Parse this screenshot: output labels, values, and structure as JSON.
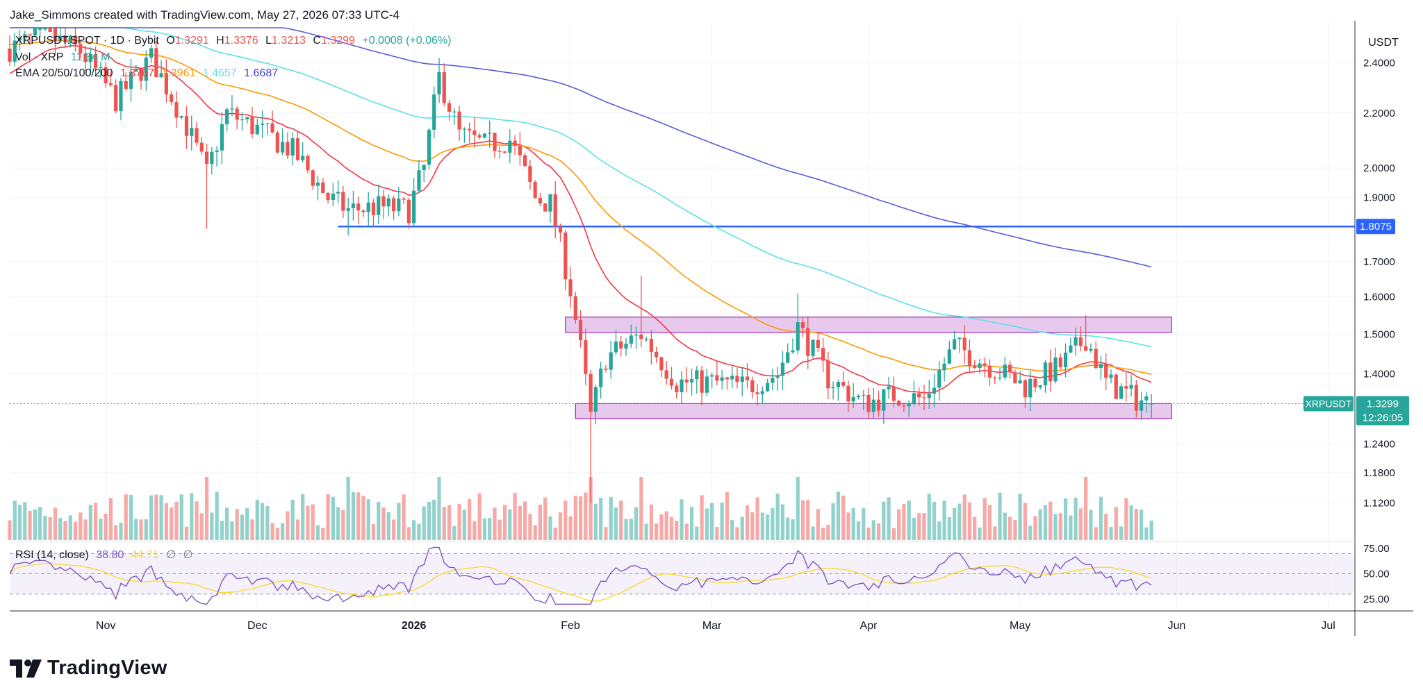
{
  "header": {
    "text": "Jake_Simmons created with TradingView.com, May 27, 2026 07:33 UTC-4"
  },
  "legend": {
    "symbol": "XRPUSDT.SPOT · 1D · Bybit",
    "o_label": "O",
    "o": "1.3291",
    "h_label": "H",
    "h": "1.3376",
    "l_label": "L",
    "l": "1.3213",
    "c_label": "C",
    "c": "1.3299",
    "change": "+0.0008 (+0.06%)",
    "vol_label": "Vol · XRP",
    "vol_value": "11.34 M",
    "ema_label": "EMA 20/50/100/200",
    "ema_values": [
      "1.3767",
      "1.3961",
      "1.4657",
      "1.6687"
    ],
    "rsi_label": "RSI (14, close)",
    "rsi_value": "38.80",
    "rsi_ma_value": "44.71",
    "rsi_extra": [
      "∅",
      "∅"
    ]
  },
  "axis": {
    "currency": "USDT",
    "price_ticks": [
      "2.4000",
      "2.2000",
      "2.0000",
      "1.9000",
      "1.7000",
      "1.6000",
      "1.5000",
      "1.4000",
      "1.2400",
      "1.1800",
      "1.1200"
    ],
    "rsi_ticks": [
      "75.00",
      "50.00",
      "25.00"
    ],
    "time_ticks": [
      "Nov",
      "Dec",
      "2026",
      "Feb",
      "Mar",
      "Apr",
      "May",
      "Jun",
      "Jul"
    ]
  },
  "tags": {
    "level": "1.8075",
    "last_symbol": "XRPUSDT",
    "last_price": "1.3299",
    "countdown": "12:26:05"
  },
  "colors": {
    "up": "#26a69a",
    "down": "#ef5350",
    "ema20": "#f23645",
    "ema50": "#ff9800",
    "ema100": "#5ce1e6",
    "ema200": "#5b5bd6",
    "level": "#2962ff",
    "zone_fill": "#e8c9ee",
    "zone_border": "#9c27b0",
    "rsi": "#7e57c2",
    "rsi_ma": "#fdd835"
  },
  "branding": {
    "name": "TradingView"
  },
  "chart_data": {
    "type": "candlestick",
    "scale": "log",
    "ylim": [
      1.05,
      2.55
    ],
    "x_range": [
      "2025-10-13",
      "2026-07-06"
    ],
    "support_resistance": [
      {
        "kind": "line",
        "value": 1.8075
      },
      {
        "kind": "zone",
        "from": 1.505,
        "to": 1.545
      },
      {
        "kind": "zone",
        "from": 1.296,
        "to": 1.33
      }
    ],
    "ema_last": {
      "ema20": 1.3767,
      "ema50": 1.3961,
      "ema100": 1.4657,
      "ema200": 1.6687
    },
    "rsi": {
      "last": 38.8,
      "ma": 44.71,
      "levels": [
        70,
        50,
        30
      ]
    },
    "anchors": [
      {
        "date": "2025-10-13",
        "close": 2.46
      },
      {
        "date": "2025-10-20",
        "close": 2.52
      },
      {
        "date": "2025-10-27",
        "close": 2.45
      },
      {
        "date": "2025-11-03",
        "close": 2.25
      },
      {
        "date": "2025-11-10",
        "close": 2.42
      },
      {
        "date": "2025-11-17",
        "close": 2.15
      },
      {
        "date": "2025-11-21",
        "close": 1.98
      },
      {
        "date": "2025-11-25",
        "close": 2.2
      },
      {
        "date": "2025-12-01",
        "close": 2.14
      },
      {
        "date": "2025-12-08",
        "close": 2.06
      },
      {
        "date": "2025-12-15",
        "close": 1.9
      },
      {
        "date": "2025-12-19",
        "close": 1.86
      },
      {
        "date": "2025-12-25",
        "close": 1.87
      },
      {
        "date": "2025-12-31",
        "close": 1.86
      },
      {
        "date": "2026-01-03",
        "close": 2.0
      },
      {
        "date": "2026-01-06",
        "close": 2.34
      },
      {
        "date": "2026-01-10",
        "close": 2.12
      },
      {
        "date": "2026-01-15",
        "close": 2.08
      },
      {
        "date": "2026-01-20",
        "close": 2.1
      },
      {
        "date": "2026-01-25",
        "close": 1.9
      },
      {
        "date": "2026-01-28",
        "close": 1.88
      },
      {
        "date": "2026-02-01",
        "close": 1.62
      },
      {
        "date": "2026-02-05",
        "close": 1.3
      },
      {
        "date": "2026-02-08",
        "close": 1.44
      },
      {
        "date": "2026-02-15",
        "close": 1.5
      },
      {
        "date": "2026-02-22",
        "close": 1.38
      },
      {
        "date": "2026-03-01",
        "close": 1.38
      },
      {
        "date": "2026-03-08",
        "close": 1.37
      },
      {
        "date": "2026-03-14",
        "close": 1.4
      },
      {
        "date": "2026-03-18",
        "close": 1.52
      },
      {
        "date": "2026-03-24",
        "close": 1.39
      },
      {
        "date": "2026-03-31",
        "close": 1.33
      },
      {
        "date": "2026-04-06",
        "close": 1.35
      },
      {
        "date": "2026-04-12",
        "close": 1.34
      },
      {
        "date": "2026-04-18",
        "close": 1.47
      },
      {
        "date": "2026-04-25",
        "close": 1.42
      },
      {
        "date": "2026-05-02",
        "close": 1.37
      },
      {
        "date": "2026-05-09",
        "close": 1.42
      },
      {
        "date": "2026-05-14",
        "close": 1.49
      },
      {
        "date": "2026-05-18",
        "close": 1.38
      },
      {
        "date": "2026-05-24",
        "close": 1.34
      },
      {
        "date": "2026-05-27",
        "close": 1.3299
      }
    ]
  }
}
